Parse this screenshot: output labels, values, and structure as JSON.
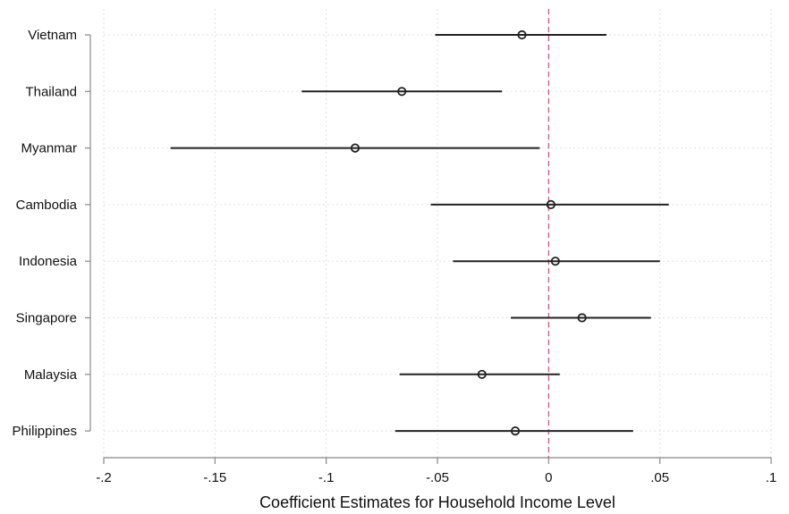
{
  "chart_data": {
    "type": "scatter",
    "orientation": "horizontal",
    "xlabel": "Coefficient Estimates for Household Income Level",
    "ylabel": "",
    "xlim": [
      -0.2,
      0.1
    ],
    "x_ticks": [
      {
        "value": -0.2,
        "label": "-.2"
      },
      {
        "value": -0.15,
        "label": "-.15"
      },
      {
        "value": -0.1,
        "label": "-.1"
      },
      {
        "value": -0.05,
        "label": "-.05"
      },
      {
        "value": 0,
        "label": "0"
      },
      {
        "value": 0.05,
        "label": ".05"
      },
      {
        "value": 0.1,
        "label": ".1"
      }
    ],
    "reference_line": {
      "x": 0,
      "color": "#d6457a",
      "style": "dashed"
    },
    "grid": true,
    "categories": [
      "Vietnam",
      "Thailand",
      "Myanmar",
      "Cambodia",
      "Indonesia",
      "Singapore",
      "Malaysia",
      "Philippines"
    ],
    "estimates": [
      -0.012,
      -0.066,
      -0.087,
      0.001,
      0.003,
      0.015,
      -0.03,
      -0.015
    ],
    "ci_low": [
      -0.051,
      -0.111,
      -0.17,
      -0.053,
      -0.043,
      -0.017,
      -0.067,
      -0.069
    ],
    "ci_high": [
      0.026,
      -0.021,
      -0.004,
      0.054,
      0.05,
      0.046,
      0.005,
      0.038
    ]
  }
}
